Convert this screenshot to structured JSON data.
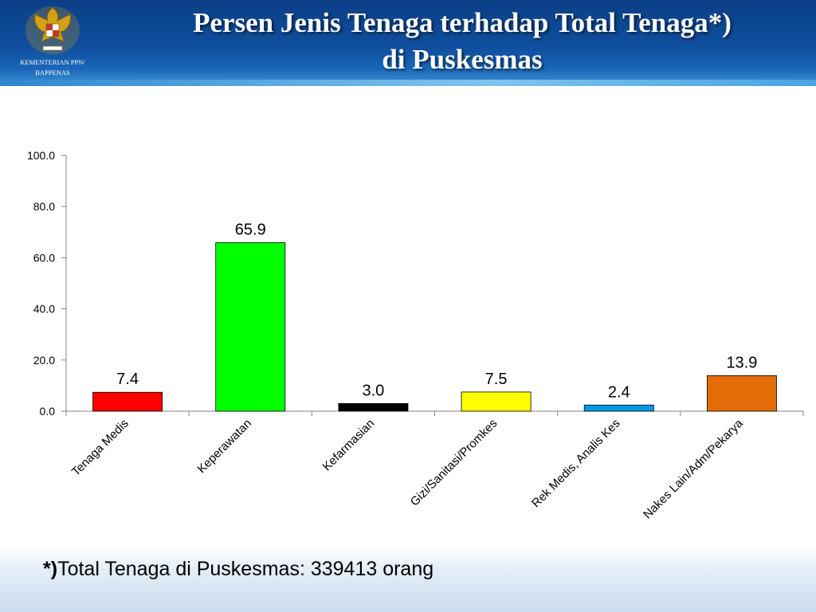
{
  "header": {
    "title_line1": "Persen Jenis Tenaga terhadap Total Tenaga*)",
    "title_line2": "di Puskesmas",
    "ministry_line1": "KEMENTERIAN PPN/",
    "ministry_line2": "BAPPENAS",
    "logo_icon": "garuda-emblem-icon"
  },
  "chart_data": {
    "type": "bar",
    "title": "",
    "xlabel": "",
    "ylabel": "",
    "ylim": [
      0,
      100
    ],
    "yticks": [
      "0.0",
      "20.0",
      "40.0",
      "60.0",
      "80.0",
      "100.0"
    ],
    "grid": false,
    "categories": [
      "Tenaga Medis",
      "Keperawatan",
      "Kefarmasian",
      "Gizi/Sanitasi/Promkes",
      "Rek Medis, Analis Kes",
      "Nakes Lain/Adm/Pekarya"
    ],
    "values": [
      7.4,
      65.9,
      3.0,
      7.5,
      2.4,
      13.9
    ],
    "value_labels": [
      "7.4",
      "65.9",
      "3.0",
      "7.5",
      "2.4",
      "13.9"
    ],
    "colors": [
      "#ff0000",
      "#00ff00",
      "#000000",
      "#ffff00",
      "#0099e6",
      "#e36c09"
    ]
  },
  "footer": {
    "mark": "*)",
    "text": "Total Tenaga di Puskesmas: 339413 orang"
  }
}
